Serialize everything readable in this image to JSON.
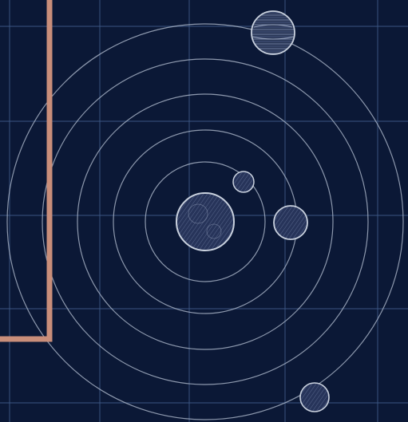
{
  "scene": {
    "background_color": "#0b1836",
    "grid_color": "#3f5a86",
    "orbit_color": "#aeb9cc",
    "frame_color": "#c98e7a",
    "planet_fill": "#2a3756",
    "planet_stroke": "#c9d1de",
    "objects": [
      "sun-icon",
      "planet-small-icon",
      "planet-right-icon",
      "planet-gas-giant-icon",
      "planet-bottom-icon",
      "orbit-rings",
      "background-grid",
      "copper-frame"
    ]
  }
}
